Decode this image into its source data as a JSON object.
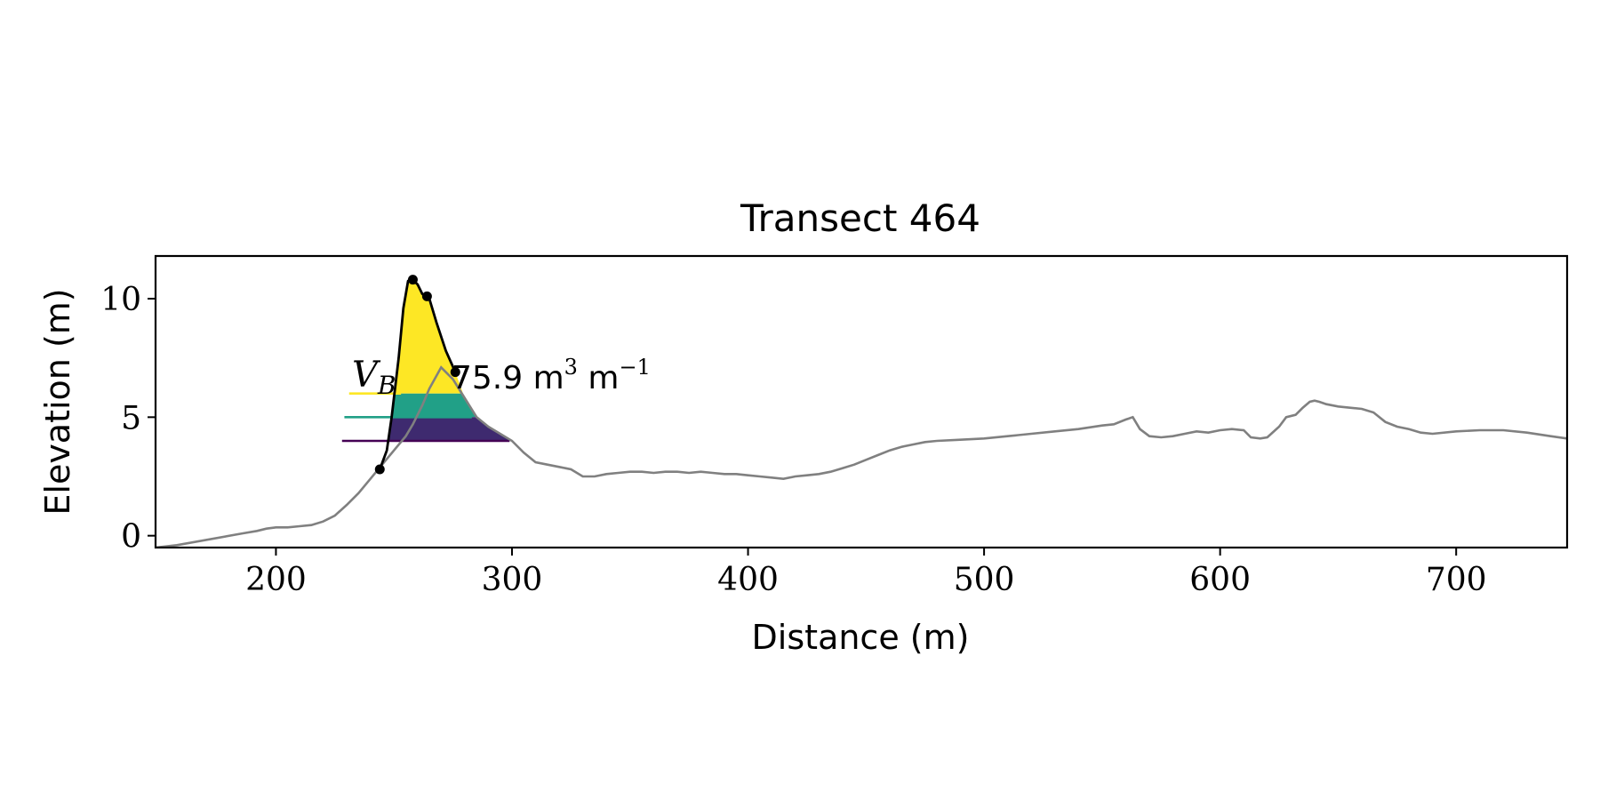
{
  "chart_data": {
    "type": "line",
    "title": "Transect 464",
    "xlabel": "Distance (m)",
    "ylabel": "Elevation (m)",
    "xlim": [
      149,
      747
    ],
    "ylim": [
      -0.5,
      11.8
    ],
    "xticks": [
      200,
      300,
      400,
      500,
      600,
      700
    ],
    "yticks": [
      0,
      5,
      10
    ],
    "grid": false,
    "annotation": {
      "symbol": "V",
      "subscript": "B",
      "text": "75.9 m",
      "unit_exp1": "3",
      "unit_mid": " m",
      "unit_exp2": "−1"
    },
    "series": [
      {
        "color": "#808080",
        "x": [
          149,
          158,
          186,
          192,
          196,
          200,
          205,
          210,
          215,
          220,
          225,
          230,
          235,
          240,
          245,
          250,
          255,
          258,
          262,
          265,
          270,
          275,
          280,
          285,
          290,
          295,
          300,
          305,
          310,
          315,
          320,
          325,
          330,
          335,
          340,
          345,
          350,
          355,
          360,
          365,
          370,
          375,
          380,
          385,
          390,
          395,
          400,
          405,
          410,
          415,
          420,
          425,
          430,
          435,
          440,
          445,
          450,
          455,
          460,
          465,
          470,
          475,
          480,
          490,
          500,
          510,
          520,
          530,
          540,
          550,
          555,
          560,
          563,
          566,
          570,
          575,
          580,
          585,
          590,
          595,
          600,
          605,
          610,
          613,
          617,
          620,
          625,
          628,
          632,
          635,
          638,
          640,
          642,
          645,
          650,
          655,
          660,
          665,
          670,
          675,
          680,
          685,
          690,
          700,
          710,
          720,
          730,
          740,
          747
        ],
        "y": [
          -0.5,
          -0.4,
          0.1,
          0.2,
          0.3,
          0.35,
          0.35,
          0.4,
          0.45,
          0.6,
          0.85,
          1.3,
          1.8,
          2.4,
          3.0,
          3.6,
          4.2,
          4.7,
          5.5,
          6.2,
          7.1,
          6.6,
          5.8,
          5.0,
          4.6,
          4.3,
          4.0,
          3.5,
          3.1,
          3.0,
          2.9,
          2.8,
          2.5,
          2.5,
          2.6,
          2.65,
          2.7,
          2.7,
          2.65,
          2.7,
          2.7,
          2.65,
          2.7,
          2.65,
          2.6,
          2.6,
          2.55,
          2.5,
          2.45,
          2.4,
          2.5,
          2.55,
          2.6,
          2.7,
          2.85,
          3.0,
          3.2,
          3.4,
          3.6,
          3.75,
          3.85,
          3.95,
          4.0,
          4.05,
          4.1,
          4.2,
          4.3,
          4.4,
          4.5,
          4.65,
          4.7,
          4.9,
          5.0,
          4.5,
          4.2,
          4.15,
          4.2,
          4.3,
          4.4,
          4.35,
          4.45,
          4.5,
          4.45,
          4.15,
          4.1,
          4.15,
          4.6,
          5.0,
          5.1,
          5.4,
          5.65,
          5.7,
          5.65,
          5.55,
          5.45,
          5.4,
          5.35,
          5.2,
          4.8,
          4.6,
          4.5,
          4.35,
          4.3,
          4.4,
          4.45,
          4.45,
          4.35,
          4.2,
          4.1
        ]
      },
      {
        "color": "#000000",
        "x": [
          244,
          247,
          249,
          252,
          254,
          256,
          258,
          260,
          262,
          265,
          268,
          272,
          276
        ],
        "y": [
          2.8,
          3.6,
          5.0,
          7.5,
          9.6,
          10.75,
          10.8,
          10.6,
          10.2,
          10.0,
          9.0,
          7.8,
          6.9
        ]
      }
    ],
    "markers": {
      "color": "#000000",
      "x": [
        244,
        258,
        264,
        276
      ],
      "y": [
        2.8,
        10.8,
        10.1,
        6.9
      ]
    },
    "bands": [
      {
        "color": "#fde725",
        "y0": 6.0,
        "y1": 10.8,
        "line_x0": 231,
        "line_x1": 253
      },
      {
        "color": "#21a087",
        "y0": 5.0,
        "y1": 6.0,
        "line_x0": 229,
        "line_x1": 283
      },
      {
        "color": "#3e2a6f",
        "y0": 4.0,
        "y1": 5.0,
        "line_x0": 228,
        "line_x1": 299
      }
    ],
    "band_lines": [
      {
        "color": "#fde725",
        "y": 6.0,
        "x0": 231,
        "x1": 253
      },
      {
        "color": "#21a087",
        "y": 5.0,
        "x0": 229,
        "x1": 283
      },
      {
        "color": "#440154",
        "y": 4.0,
        "x0": 228,
        "x1": 299
      }
    ]
  }
}
